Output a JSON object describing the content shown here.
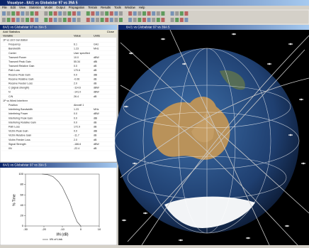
{
  "app": {
    "title": "Visualyse - 8A/1 vs Globalstar 97 vs 39A 5",
    "menu": [
      "File",
      "Edit",
      "View",
      "Statistics",
      "Model",
      "Output",
      "Propagation",
      "Terrain",
      "Results",
      "Tools",
      "Window",
      "Help"
    ]
  },
  "table_window": {
    "title": "8A/1 vs Globalstar 97 vs 39A 5",
    "toolbar": "Add Statistics",
    "close": "Close",
    "columns": [
      "Variable",
      "Value",
      "Units"
    ],
    "rows": [
      [
        "1P vs LEO Gal station"
      ],
      [
        "Frequency",
        "6.1",
        "GHz"
      ],
      [
        "Bandwidth",
        "1.23",
        "MHz"
      ],
      [
        "Carrier",
        "User specified"
      ],
      [
        "Transmit Power",
        "10.0",
        "dBW"
      ],
      [
        "Transmit Peak Gain",
        "55.34",
        "dBi"
      ],
      [
        "Transmit Relative Gain",
        "0.0",
        "dB"
      ],
      [
        "Path Loss",
        "170.6",
        "dB"
      ],
      [
        "Receive Peak Gain",
        "0.0",
        "dBi"
      ],
      [
        "Receive Relative Gain",
        "-0.06",
        "dB"
      ],
      [
        "Receive Feeder Loss",
        "2.0",
        "dB"
      ],
      [
        "C (signal strength)",
        "-114.6",
        "dBW"
      ],
      [
        "N",
        "-141.0",
        "dBW"
      ],
      [
        "C/N",
        "26.4",
        "dB"
      ],
      [
        "1P vs Wired Interferer"
      ],
      [
        "Position",
        "Aircraft 1"
      ],
      [
        "Interfering Bandwidth",
        "1.23",
        "MHz"
      ],
      [
        "Interfering Power",
        "0.0",
        "dBW"
      ],
      [
        "Interfering Peak Gain",
        "0.0",
        "dBi"
      ],
      [
        "Interfering Relative Gain",
        "0.0",
        "dB"
      ],
      [
        "Path Loss",
        "172.9",
        "dB"
      ],
      [
        "Victim Peak Gain",
        "0.0",
        "dBi"
      ],
      [
        "Victim Relative Gain",
        "-11.7",
        "dB"
      ],
      [
        "Victim Feeder Loss",
        "2.0",
        "dB"
      ],
      [
        "Signal Strength",
        "-186.6",
        "dBW"
      ],
      [
        "I/N",
        "-22.4",
        "dB"
      ]
    ]
  },
  "plot_window": {
    "title": "8A/1 vs Globalstar 97 vs 39A 5",
    "plot": {
      "type": "line",
      "xlabel": "I/N (dB)",
      "ylabel": "% Time",
      "series": [
        {
          "name": "I/N of Link",
          "color": "#555555",
          "x": [
            -21,
            -18,
            -15,
            -12,
            -10,
            -8,
            -6,
            -4,
            -2,
            0
          ],
          "values": [
            100,
            99,
            95,
            85,
            75,
            60,
            45,
            25,
            8,
            0
          ]
        }
      ],
      "xlim": [
        -30,
        10
      ],
      "xticks": [
        -30,
        -20,
        -10,
        0,
        10
      ],
      "ylim": [
        0,
        100
      ],
      "yticks": [
        0,
        20,
        40,
        60,
        80,
        100
      ]
    }
  },
  "globe_window": {
    "title": "8A/1 vs Globalstar 97 vs 39A 5"
  }
}
